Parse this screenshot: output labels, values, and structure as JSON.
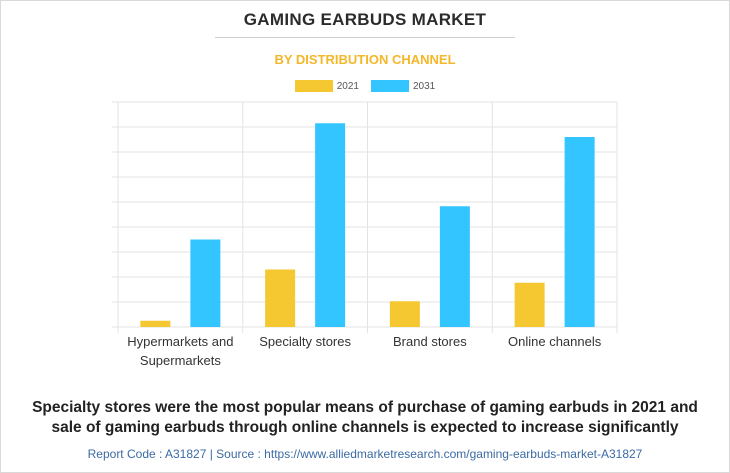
{
  "header": {
    "title": "GAMING EARBUDS MARKET",
    "subtitle": "BY DISTRIBUTION CHANNEL"
  },
  "colors": {
    "series_2021": "#f5c832",
    "series_2031": "#33c5ff",
    "subtitle": "#f4b72a",
    "grid": "#e3e3e3",
    "footer": "#3b6aa3"
  },
  "chart_data": {
    "type": "bar",
    "title": "GAMING EARBUDS MARKET",
    "subtitle": "BY DISTRIBUTION CHANNEL",
    "xlabel": "",
    "ylabel": "",
    "categories": [
      "Hypermarkets and Supermarkets",
      "Specialty stores",
      "Brand stores",
      "Online channels"
    ],
    "category_lines": [
      [
        "Hypermarkets and",
        "Supermarkets"
      ],
      [
        "Specialty stores"
      ],
      [
        "Brand stores"
      ],
      [
        "Online channels"
      ]
    ],
    "series": [
      {
        "name": "2021",
        "values": [
          0.25,
          2.3,
          1.03,
          1.77
        ]
      },
      {
        "name": "2031",
        "values": [
          3.5,
          8.15,
          4.83,
          7.6
        ]
      }
    ],
    "ylim": [
      0,
      9
    ],
    "y_gridlines": 9,
    "y_tick_labels_shown": false,
    "grid": true,
    "legend_position": "top-center"
  },
  "caption": {
    "line1": "Specialty stores were the most popular means of purchase of gaming earbuds in 2021 and",
    "line2": "sale of gaming earbuds through online channels is expected to increase significantly"
  },
  "footer": {
    "text": "Report Code : A31827  |  Source : https://www.alliedmarketresearch.com/gaming-earbuds-market-A31827"
  }
}
